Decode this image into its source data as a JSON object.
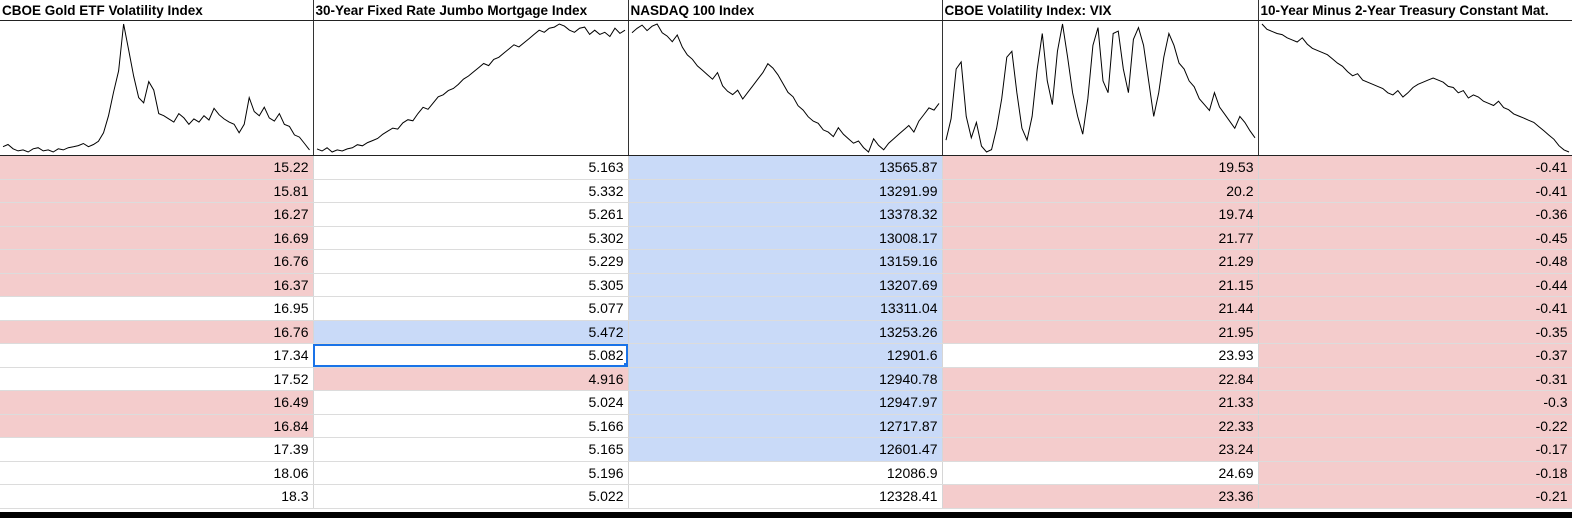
{
  "columns": [
    {
      "header": "CBOE Gold ETF Volatility Index",
      "series": [
        9,
        11,
        7,
        5,
        6,
        4,
        7,
        8,
        5,
        6,
        4,
        7,
        6,
        8,
        9,
        10,
        12,
        9,
        11,
        14,
        22,
        38,
        60,
        80,
        124,
        100,
        75,
        55,
        50,
        70,
        62,
        40,
        38,
        35,
        32,
        40,
        36,
        30,
        35,
        32,
        38,
        34,
        45,
        39,
        35,
        32,
        30,
        22,
        30,
        55,
        42,
        38,
        46,
        36,
        33,
        40,
        30,
        28,
        20,
        18,
        12,
        6
      ]
    },
    {
      "header": "30-Year Fixed Rate Jumbo Mortgage Index",
      "series": [
        8,
        6,
        9,
        5,
        7,
        6,
        8,
        9,
        12,
        11,
        14,
        16,
        18,
        22,
        25,
        28,
        27,
        33,
        36,
        35,
        42,
        48,
        46,
        52,
        58,
        60,
        64,
        66,
        70,
        75,
        78,
        82,
        86,
        90,
        88,
        94,
        96,
        100,
        104,
        108,
        106,
        110,
        114,
        118,
        122,
        120,
        124,
        125,
        128,
        126,
        122,
        120,
        124,
        125,
        118,
        122,
        118,
        120,
        116,
        124,
        119,
        122
      ]
    },
    {
      "header": "NASDAQ 100 Index",
      "series": [
        118,
        122,
        125,
        120,
        124,
        126,
        118,
        115,
        110,
        116,
        105,
        98,
        94,
        88,
        84,
        80,
        76,
        82,
        70,
        65,
        62,
        66,
        58,
        64,
        70,
        76,
        82,
        90,
        86,
        80,
        72,
        64,
        60,
        52,
        48,
        42,
        38,
        36,
        30,
        28,
        24,
        32,
        26,
        22,
        18,
        20,
        14,
        10,
        22,
        16,
        12,
        18,
        22,
        26,
        30,
        34,
        28,
        38,
        44,
        50,
        48,
        54
      ]
    },
    {
      "header": "CBOE Volatility Index: VIX",
      "series": [
        20,
        38,
        80,
        86,
        40,
        22,
        35,
        15,
        10,
        12,
        30,
        55,
        90,
        95,
        60,
        30,
        20,
        40,
        80,
        110,
        70,
        50,
        95,
        118,
        90,
        60,
        40,
        25,
        55,
        100,
        115,
        70,
        60,
        110,
        112,
        80,
        60,
        105,
        115,
        100,
        70,
        40,
        60,
        90,
        110,
        100,
        85,
        80,
        70,
        65,
        55,
        50,
        45,
        60,
        48,
        42,
        36,
        30,
        40,
        35,
        28,
        22
      ]
    },
    {
      "header": "10-Year Minus 2-Year Treasury Constant Mat.",
      "series": [
        125,
        120,
        118,
        116,
        115,
        112,
        110,
        108,
        112,
        106,
        102,
        100,
        98,
        96,
        92,
        88,
        85,
        80,
        76,
        78,
        72,
        70,
        68,
        66,
        64,
        60,
        58,
        62,
        56,
        60,
        65,
        68,
        70,
        72,
        74,
        72,
        70,
        66,
        65,
        60,
        62,
        55,
        58,
        56,
        52,
        50,
        48,
        52,
        46,
        44,
        40,
        38,
        36,
        34,
        32,
        28,
        24,
        20,
        16,
        10,
        6,
        4
      ]
    }
  ],
  "rows": [
    [
      "15.22",
      "5.163",
      "13565.87",
      "19.53",
      "-0.41"
    ],
    [
      "15.81",
      "5.332",
      "13291.99",
      "20.2",
      "-0.41"
    ],
    [
      "16.27",
      "5.261",
      "13378.32",
      "19.74",
      "-0.36"
    ],
    [
      "16.69",
      "5.302",
      "13008.17",
      "21.77",
      "-0.45"
    ],
    [
      "16.76",
      "5.229",
      "13159.16",
      "21.29",
      "-0.48"
    ],
    [
      "16.37",
      "5.305",
      "13207.69",
      "21.15",
      "-0.44"
    ],
    [
      "16.95",
      "5.077",
      "13311.04",
      "21.44",
      "-0.41"
    ],
    [
      "16.76",
      "5.472",
      "13253.26",
      "21.95",
      "-0.35"
    ],
    [
      "17.34",
      "5.082",
      "12901.6",
      "23.93",
      "-0.37"
    ],
    [
      "17.52",
      "4.916",
      "12940.78",
      "22.84",
      "-0.31"
    ],
    [
      "16.49",
      "5.024",
      "12947.97",
      "21.33",
      "-0.3"
    ],
    [
      "16.84",
      "5.166",
      "12717.87",
      "22.33",
      "-0.22"
    ],
    [
      "17.39",
      "5.165",
      "12601.47",
      "23.24",
      "-0.17"
    ],
    [
      "18.06",
      "5.196",
      "12086.9",
      "24.69",
      "-0.18"
    ],
    [
      "18.3",
      "5.022",
      "12328.41",
      "23.36",
      "-0.21"
    ]
  ],
  "fills": [
    [
      "pink",
      "white",
      "blue",
      "pink",
      "pink"
    ],
    [
      "pink",
      "white",
      "blue",
      "pink",
      "pink"
    ],
    [
      "pink",
      "white",
      "blue",
      "pink",
      "pink"
    ],
    [
      "pink",
      "white",
      "blue",
      "pink",
      "pink"
    ],
    [
      "pink",
      "white",
      "blue",
      "pink",
      "pink"
    ],
    [
      "pink",
      "white",
      "blue",
      "pink",
      "pink"
    ],
    [
      "white",
      "white",
      "blue",
      "pink",
      "pink"
    ],
    [
      "pink",
      "blue",
      "blue",
      "pink",
      "pink"
    ],
    [
      "white",
      "selected",
      "blue",
      "white",
      "pink"
    ],
    [
      "white",
      "pink",
      "blue",
      "pink",
      "pink"
    ],
    [
      "pink",
      "white",
      "blue",
      "pink",
      "pink"
    ],
    [
      "pink",
      "white",
      "blue",
      "pink",
      "pink"
    ],
    [
      "white",
      "white",
      "blue",
      "pink",
      "pink"
    ],
    [
      "white",
      "white",
      "white",
      "white",
      "pink"
    ],
    [
      "white",
      "white",
      "white",
      "pink",
      "pink"
    ]
  ],
  "colors": {
    "pink": "#f4cccc",
    "blue": "#c9daf8",
    "selection": "#1a73e8"
  }
}
